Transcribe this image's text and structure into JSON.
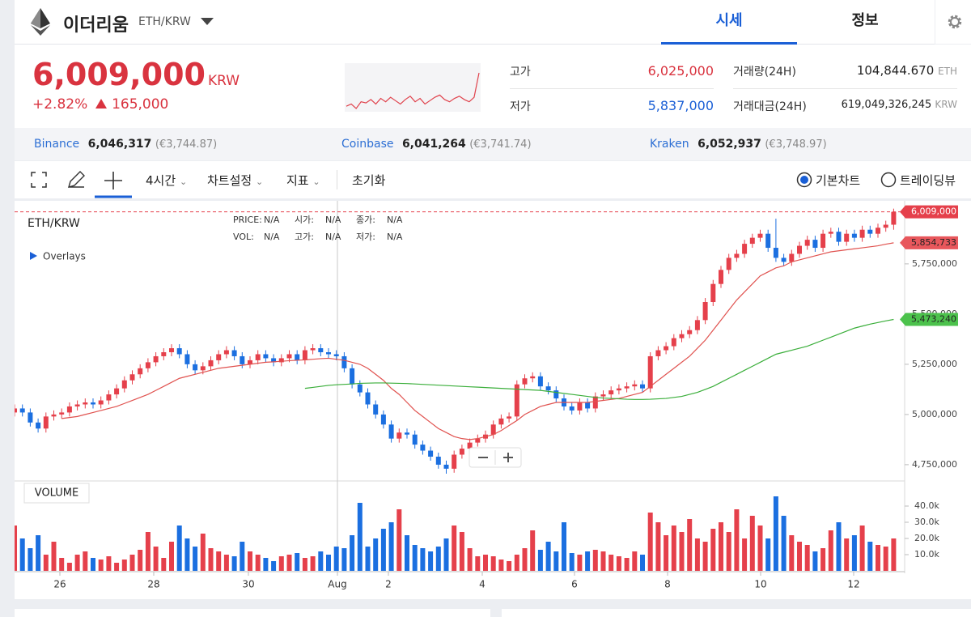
{
  "header": {
    "coin": "이더리움",
    "pair": "ETH/KRW",
    "tabs": [
      "시세",
      "정보"
    ]
  },
  "ticker": {
    "price": "6,009,000",
    "currency": "KRW",
    "change_rate": "+2.82%",
    "change_amount": "165,000",
    "sparkline": [
      5860000,
      5870000,
      5850000,
      5880000,
      5875000,
      5890000,
      5870000,
      5895000,
      5880000,
      5900000,
      5885000,
      5870000,
      5890000,
      5905000,
      5880000,
      5895000,
      5870000,
      5885000,
      5900000,
      5910000,
      5890000,
      5880000,
      5895000,
      5905000,
      5890000,
      5880000,
      5900000,
      6009000
    ],
    "sparkline_color": "#e0424c",
    "stats": [
      {
        "label": "고가",
        "value": "6,025,000"
      },
      {
        "label": "저가",
        "value": "5,837,000"
      },
      {
        "label": "거래량(24H)",
        "value": "104,844.670",
        "unit": "ETH"
      },
      {
        "label": "거래대금(24H)",
        "value": "619,049,326,245",
        "unit": "KRW"
      }
    ]
  },
  "exchanges": [
    {
      "name": "Binance",
      "price": "6,046,317",
      "eur": "(€3,744.87)"
    },
    {
      "name": "Coinbase",
      "price": "6,041,264",
      "eur": "(€3,741.74)"
    },
    {
      "name": "Kraken",
      "price": "6,052,937",
      "eur": "(€3,748.97)"
    }
  ],
  "toolbar": {
    "interval": "4시간",
    "settings": "차트설정",
    "indicators": "지표",
    "reset": "초기화",
    "chart_modes": [
      "기본차트",
      "트레이딩뷰"
    ]
  },
  "chart_data": {
    "type": "candlestick",
    "title": "ETH/KRW",
    "legend_items": [
      {
        "label": "PRICE:",
        "value": "N/A"
      },
      {
        "label": "시가:",
        "value": "N/A"
      },
      {
        "label": "종가:",
        "value": "N/A"
      },
      {
        "label": "VOL:",
        "value": "N/A"
      },
      {
        "label": "고가:",
        "value": "N/A"
      },
      {
        "label": "저가:",
        "value": "N/A"
      }
    ],
    "overlays_label": "Overlays",
    "volume_title": "VOLUME",
    "x_labels": [
      "26",
      "28",
      "30",
      "Aug",
      "2",
      "4",
      "6",
      "8",
      "10",
      "12"
    ],
    "ylim": [
      4677000,
      6064000
    ],
    "yticks": [
      {
        "value": 4750000,
        "label": "4,750,000"
      },
      {
        "value": 5000000,
        "label": "5,000,000"
      },
      {
        "value": 5250000,
        "label": "5,250,000"
      },
      {
        "value": 5500000,
        "label": "5,500,000"
      },
      {
        "value": 5750000,
        "label": "5,750,000"
      }
    ],
    "candles": {
      "up_color": "#e5404b",
      "down_color": "#1b6fe0",
      "last_label": "6,009,000",
      "open": [
        5010000,
        5030000,
        5010000,
        4960000,
        4930000,
        4990000,
        5000000,
        5010000,
        5040000,
        5050000,
        5060000,
        5050000,
        5070000,
        5100000,
        5130000,
        5170000,
        5200000,
        5230000,
        5260000,
        5290000,
        5310000,
        5330000,
        5300000,
        5250000,
        5220000,
        5240000,
        5270000,
        5300000,
        5320000,
        5290000,
        5250000,
        5270000,
        5300000,
        5280000,
        5260000,
        5280000,
        5300000,
        5270000,
        5320000,
        5330000,
        5310000,
        5300000,
        5290000,
        5230000,
        5150000,
        5110000,
        5050000,
        5000000,
        4950000,
        4880000,
        4910000,
        4900000,
        4850000,
        4820000,
        4790000,
        4750000,
        4730000,
        4800000,
        4830000,
        4860000,
        4880000,
        4900000,
        4950000,
        4980000,
        4990000,
        5150000,
        5180000,
        5190000,
        5140000,
        5120000,
        5080000,
        5040000,
        5020000,
        5060000,
        5030000,
        5090000,
        5100000,
        5120000,
        5130000,
        5140000,
        5150000,
        5130000,
        5290000,
        5320000,
        5340000,
        5380000,
        5400000,
        5420000,
        5470000,
        5560000,
        5650000,
        5720000,
        5780000,
        5800000,
        5850000,
        5880000,
        5900000,
        5830000,
        5780000,
        5760000,
        5800000,
        5840000,
        5870000,
        5830000,
        5900000,
        5910000,
        5860000,
        5900000,
        5880000,
        5920000,
        5900000,
        5930000,
        5945000
      ],
      "high": [
        5050000,
        5050000,
        5030000,
        4980000,
        5010000,
        5020000,
        5030000,
        5060000,
        5070000,
        5080000,
        5080000,
        5090000,
        5120000,
        5150000,
        5190000,
        5220000,
        5250000,
        5280000,
        5310000,
        5330000,
        5350000,
        5350000,
        5320000,
        5270000,
        5260000,
        5290000,
        5320000,
        5340000,
        5340000,
        5310000,
        5290000,
        5320000,
        5320000,
        5300000,
        5300000,
        5320000,
        5320000,
        5340000,
        5350000,
        5350000,
        5330000,
        5320000,
        5310000,
        5250000,
        5170000,
        5130000,
        5070000,
        5020000,
        4970000,
        4930000,
        4930000,
        4920000,
        4870000,
        4840000,
        4810000,
        4770000,
        4820000,
        4850000,
        4880000,
        4900000,
        4920000,
        4970000,
        5000000,
        5010000,
        5170000,
        5200000,
        5210000,
        5210000,
        5160000,
        5140000,
        5100000,
        5060000,
        5080000,
        5080000,
        5110000,
        5120000,
        5140000,
        5150000,
        5160000,
        5170000,
        5170000,
        5310000,
        5340000,
        5360000,
        5400000,
        5420000,
        5440000,
        5490000,
        5580000,
        5670000,
        5740000,
        5800000,
        5820000,
        5870000,
        5900000,
        5920000,
        5920000,
        5975000,
        5800000,
        5820000,
        5860000,
        5890000,
        5890000,
        5920000,
        5930000,
        5930000,
        5920000,
        5920000,
        5940000,
        5940000,
        5950000,
        5965000,
        6025000
      ],
      "low": [
        4990000,
        4990000,
        4940000,
        4910000,
        4910000,
        4970000,
        4980000,
        4990000,
        5020000,
        5030000,
        5030000,
        5030000,
        5050000,
        5080000,
        5110000,
        5150000,
        5180000,
        5210000,
        5240000,
        5270000,
        5290000,
        5280000,
        5230000,
        5200000,
        5200000,
        5220000,
        5250000,
        5280000,
        5270000,
        5230000,
        5230000,
        5250000,
        5260000,
        5240000,
        5240000,
        5260000,
        5250000,
        5250000,
        5300000,
        5290000,
        5280000,
        5270000,
        5210000,
        5130000,
        5090000,
        5030000,
        4980000,
        4930000,
        4860000,
        4860000,
        4880000,
        4830000,
        4800000,
        4770000,
        4730000,
        4705000,
        4710000,
        4780000,
        4810000,
        4840000,
        4860000,
        4880000,
        4930000,
        4960000,
        4970000,
        5130000,
        5160000,
        5120000,
        5100000,
        5060000,
        5020000,
        5000000,
        5000000,
        5010000,
        5010000,
        5070000,
        5080000,
        5100000,
        5110000,
        5120000,
        5110000,
        5110000,
        5270000,
        5300000,
        5320000,
        5360000,
        5380000,
        5400000,
        5450000,
        5540000,
        5630000,
        5700000,
        5760000,
        5780000,
        5830000,
        5860000,
        5810000,
        5760000,
        5740000,
        5740000,
        5780000,
        5820000,
        5810000,
        5810000,
        5880000,
        5840000,
        5840000,
        5860000,
        5860000,
        5880000,
        5880000,
        5910000,
        5920000
      ],
      "close": [
        5030000,
        5010000,
        4960000,
        4930000,
        4990000,
        5000000,
        5010000,
        5040000,
        5050000,
        5060000,
        5050000,
        5070000,
        5100000,
        5130000,
        5170000,
        5200000,
        5230000,
        5260000,
        5290000,
        5310000,
        5330000,
        5300000,
        5250000,
        5220000,
        5240000,
        5270000,
        5300000,
        5320000,
        5290000,
        5250000,
        5270000,
        5300000,
        5280000,
        5260000,
        5280000,
        5300000,
        5270000,
        5320000,
        5330000,
        5310000,
        5300000,
        5290000,
        5230000,
        5150000,
        5110000,
        5050000,
        5000000,
        4950000,
        4880000,
        4910000,
        4900000,
        4850000,
        4820000,
        4790000,
        4750000,
        4730000,
        4800000,
        4830000,
        4860000,
        4880000,
        4900000,
        4950000,
        4980000,
        4990000,
        5150000,
        5180000,
        5190000,
        5140000,
        5120000,
        5080000,
        5040000,
        5020000,
        5060000,
        5030000,
        5090000,
        5100000,
        5120000,
        5130000,
        5140000,
        5150000,
        5130000,
        5290000,
        5320000,
        5340000,
        5380000,
        5400000,
        5420000,
        5470000,
        5560000,
        5650000,
        5720000,
        5780000,
        5800000,
        5850000,
        5880000,
        5900000,
        5830000,
        5780000,
        5760000,
        5800000,
        5840000,
        5870000,
        5830000,
        5900000,
        5910000,
        5860000,
        5900000,
        5880000,
        5920000,
        5900000,
        5930000,
        5945000,
        6009000
      ]
    },
    "volume": {
      "ylim": [
        0,
        54500
      ],
      "yticks": [
        {
          "value": 10000,
          "label": "10.0k"
        },
        {
          "value": 20000,
          "label": "20.0k"
        },
        {
          "value": 30000,
          "label": "30.0k"
        },
        {
          "value": 40000,
          "label": "40.0k"
        }
      ],
      "values": [
        28000,
        20000,
        14000,
        22000,
        10000,
        18000,
        8000,
        5000,
        10000,
        12000,
        8000,
        7000,
        9000,
        5000,
        7000,
        10000,
        13000,
        24000,
        15000,
        8000,
        18000,
        28000,
        20000,
        15000,
        23000,
        14000,
        12000,
        10000,
        9000,
        18000,
        12000,
        10000,
        8000,
        6000,
        9000,
        10000,
        11000,
        8000,
        9000,
        12000,
        10000,
        15000,
        14000,
        22000,
        42000,
        15000,
        20000,
        26000,
        30000,
        38000,
        22000,
        16000,
        14000,
        12000,
        15000,
        20000,
        28000,
        24000,
        14000,
        9000,
        10000,
        9000,
        7000,
        6000,
        10000,
        14000,
        25000,
        13000,
        18000,
        12000,
        30000,
        11000,
        10000,
        12000,
        13000,
        12000,
        10000,
        9000,
        8000,
        12000,
        10000,
        36000,
        30000,
        22000,
        28000,
        24000,
        32000,
        20000,
        18000,
        26000,
        30000,
        24000,
        38000,
        20000,
        34000,
        28000,
        20000,
        46000,
        34000,
        22000,
        18000,
        16000,
        12000,
        14000,
        25000,
        30000,
        20000,
        22000,
        28000,
        18000,
        16000,
        15000,
        20000
      ]
    },
    "series": [
      {
        "color": "#e0524f",
        "tag_color": "#e8575c",
        "last_label": "5,854,733",
        "values": [
          null,
          null,
          null,
          null,
          null,
          null,
          4980000,
          4985000,
          4990000,
          5000000,
          5010000,
          5020000,
          5030000,
          5040000,
          5055000,
          5070000,
          5085000,
          5100000,
          5120000,
          5140000,
          5160000,
          5180000,
          5190000,
          5200000,
          5210000,
          5220000,
          5230000,
          5235000,
          5240000,
          5245000,
          5250000,
          5255000,
          5260000,
          5262000,
          5265000,
          5268000,
          5270000,
          5272000,
          5275000,
          5278000,
          5280000,
          5275000,
          5270000,
          5260000,
          5250000,
          5230000,
          5200000,
          5170000,
          5130000,
          5100000,
          5060000,
          5020000,
          4990000,
          4960000,
          4930000,
          4910000,
          4890000,
          4880000,
          4875000,
          4880000,
          4890000,
          4900000,
          4920000,
          4945000,
          4970000,
          5000000,
          5020000,
          5040000,
          5050000,
          5060000,
          5060000,
          5060000,
          5060000,
          5060000,
          5065000,
          5070000,
          5075000,
          5080000,
          5090000,
          5100000,
          5110000,
          5140000,
          5170000,
          5200000,
          5230000,
          5260000,
          5290000,
          5330000,
          5370000,
          5420000,
          5470000,
          5520000,
          5570000,
          5610000,
          5650000,
          5690000,
          5710000,
          5730000,
          5740000,
          5760000,
          5770000,
          5780000,
          5790000,
          5800000,
          5810000,
          5815000,
          5820000,
          5825000,
          5830000,
          5835000,
          5840000,
          5848000,
          5854733
        ]
      },
      {
        "color": "#3aae3a",
        "tag_color": "#4cc24c",
        "last_label": "5,473,240",
        "values": [
          null,
          null,
          null,
          null,
          null,
          null,
          null,
          null,
          null,
          null,
          null,
          null,
          null,
          null,
          null,
          null,
          null,
          null,
          null,
          null,
          null,
          null,
          null,
          null,
          null,
          null,
          null,
          null,
          null,
          null,
          null,
          null,
          null,
          null,
          null,
          null,
          null,
          5130000,
          5135000,
          5140000,
          5145000,
          5148000,
          5150000,
          5152000,
          5155000,
          5156000,
          5157000,
          5157000,
          5156000,
          5155000,
          5154000,
          5152000,
          5150000,
          5148000,
          5146000,
          5144000,
          5142000,
          5140000,
          5138000,
          5136000,
          5134000,
          5132000,
          5130000,
          5128000,
          5126000,
          5124000,
          5122000,
          5120000,
          5115000,
          5110000,
          5105000,
          5100000,
          5095000,
          5090000,
          5085000,
          5082000,
          5080000,
          5078000,
          5076000,
          5075000,
          5075000,
          5076000,
          5078000,
          5080000,
          5085000,
          5090000,
          5100000,
          5110000,
          5125000,
          5140000,
          5160000,
          5180000,
          5200000,
          5220000,
          5240000,
          5260000,
          5280000,
          5300000,
          5310000,
          5320000,
          5330000,
          5340000,
          5355000,
          5370000,
          5385000,
          5400000,
          5415000,
          5430000,
          5440000,
          5450000,
          5458000,
          5466000,
          5473240
        ]
      }
    ]
  }
}
